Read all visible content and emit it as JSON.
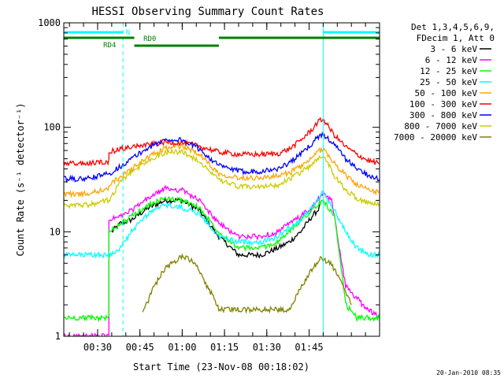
{
  "chart_data": {
    "type": "line",
    "title": "HESSI Observing Summary Count Rates",
    "xlabel": "Start Time (23-Nov-08 00:18:02)",
    "ylabel": "Count Rate (s⁻¹ detector⁻¹)",
    "x_unit": "minutes since 00:18:02",
    "x_range": [
      0,
      112
    ],
    "y_scale": "log",
    "y_range": [
      1,
      1000
    ],
    "x_ticks": [
      {
        "x": 12,
        "label": "00:30"
      },
      {
        "x": 27,
        "label": "00:45"
      },
      {
        "x": 42,
        "label": "01:00"
      },
      {
        "x": 57,
        "label": "01:15"
      },
      {
        "x": 72,
        "label": "01:30"
      },
      {
        "x": 87,
        "label": "01:45"
      }
    ],
    "y_ticks": [
      {
        "v": 1,
        "label": "1"
      },
      {
        "v": 10,
        "label": "10"
      },
      {
        "v": 100,
        "label": "100"
      },
      {
        "v": 1000,
        "label": "1000"
      }
    ],
    "legend_header": [
      "Det 1,3,4,5,6,9,",
      "FDecim 1, Att 0"
    ],
    "legend_position": "right",
    "footer_stamp": "20-Jan-2010 08:35",
    "flags": [
      {
        "label": "N",
        "color": "#00ffff",
        "segments": [
          [
            0,
            21
          ],
          [
            92,
            112
          ]
        ]
      },
      {
        "label": "RD0",
        "color": "#008000",
        "segments": [
          [
            0,
            25
          ],
          [
            55,
            112
          ]
        ]
      },
      {
        "label": "RD4",
        "color": "#008000",
        "segments": [
          [
            25,
            55
          ]
        ]
      }
    ],
    "vlines": [
      {
        "x": 21,
        "color": "#00ffff",
        "style": "dashed"
      },
      {
        "x": 92,
        "color": "#00ffff",
        "style": "solid"
      },
      {
        "x": 112,
        "color": "#00ffff",
        "style": "dashed"
      }
    ],
    "series": [
      {
        "name": "3 - 6 keV",
        "color": "#000000",
        "x": [
          17,
          20,
          24,
          30,
          36,
          42,
          48,
          55,
          62,
          70,
          76,
          80,
          84,
          88,
          90,
          91
        ],
        "values": [
          10,
          12,
          13,
          17,
          20,
          20,
          16,
          9,
          6,
          6,
          7,
          8,
          10,
          14,
          16,
          18
        ]
      },
      {
        "name": "6 - 12 keV",
        "color": "#ff00ff",
        "x": [
          0,
          16,
          16,
          20,
          24,
          30,
          36,
          42,
          48,
          55,
          62,
          70,
          76,
          80,
          84,
          88,
          90,
          92,
          95,
          100,
          106,
          112
        ],
        "values": [
          1,
          1,
          13,
          14,
          16,
          21,
          26,
          25,
          20,
          12,
          9,
          9,
          10,
          12,
          14,
          17,
          20,
          23,
          20,
          3,
          2,
          1.5
        ]
      },
      {
        "name": "12 - 25 keV",
        "color": "#00ff00",
        "x": [
          0,
          16,
          16,
          20,
          24,
          30,
          36,
          42,
          48,
          55,
          62,
          70,
          76,
          80,
          84,
          88,
          92,
          96,
          100,
          104,
          112
        ],
        "values": [
          1.5,
          1.5,
          10,
          12,
          14,
          18,
          21,
          20,
          17,
          10,
          7,
          7,
          8,
          10,
          13,
          16,
          20,
          14,
          2,
          1.5,
          1.5
        ]
      },
      {
        "name": "25 - 50 keV",
        "color": "#00ffff",
        "x": [
          0,
          8,
          16,
          20,
          24,
          30,
          36,
          42,
          48,
          55,
          62,
          70,
          76,
          80,
          84,
          88,
          92,
          96,
          100,
          104,
          108,
          112
        ],
        "values": [
          6,
          6,
          6,
          7,
          10,
          15,
          18,
          17,
          15,
          9,
          8,
          8,
          9,
          11,
          13,
          17,
          24,
          16,
          10,
          7,
          6,
          6
        ]
      },
      {
        "name": "50 - 100 keV",
        "color": "#ffa500",
        "x": [
          0,
          8,
          16,
          17,
          20,
          24,
          30,
          36,
          42,
          48,
          55,
          62,
          70,
          76,
          80,
          84,
          88,
          90,
          92,
          96,
          100,
          104,
          108,
          112
        ],
        "values": [
          23,
          23,
          26,
          30,
          33,
          40,
          52,
          63,
          66,
          56,
          36,
          33,
          33,
          34,
          37,
          42,
          50,
          58,
          63,
          45,
          35,
          28,
          25,
          24
        ]
      },
      {
        "name": "100 - 300 keV",
        "color": "#ff0000",
        "x": [
          0,
          8,
          16,
          16,
          20,
          24,
          30,
          36,
          42,
          48,
          55,
          62,
          70,
          76,
          80,
          84,
          88,
          90,
          92,
          96,
          100,
          104,
          108,
          112
        ],
        "values": [
          45,
          45,
          47,
          58,
          62,
          65,
          68,
          72,
          71,
          66,
          58,
          55,
          55,
          56,
          62,
          75,
          95,
          112,
          120,
          84,
          65,
          55,
          48,
          45
        ]
      },
      {
        "name": "300 - 800 keV",
        "color": "#0000ff",
        "x": [
          0,
          8,
          16,
          20,
          24,
          30,
          36,
          42,
          48,
          55,
          62,
          70,
          76,
          80,
          84,
          88,
          90,
          92,
          96,
          100,
          104,
          108,
          112
        ],
        "values": [
          32,
          32,
          36,
          42,
          50,
          64,
          76,
          76,
          62,
          43,
          38,
          38,
          40,
          46,
          55,
          70,
          80,
          86,
          68,
          50,
          40,
          35,
          32
        ]
      },
      {
        "name": "800 - 7000 keV",
        "color": "#cccc00",
        "x": [
          0,
          8,
          16,
          20,
          24,
          30,
          36,
          42,
          48,
          55,
          62,
          70,
          76,
          80,
          84,
          88,
          92,
          96,
          100,
          104,
          108,
          112
        ],
        "values": [
          18,
          18,
          20,
          30,
          37,
          48,
          58,
          58,
          48,
          31,
          27,
          27,
          28,
          32,
          37,
          44,
          55,
          34,
          25,
          21,
          19,
          18
        ]
      },
      {
        "name": "7000 - 20000 keV",
        "color": "#808000",
        "x": [
          28,
          30,
          32,
          36,
          42,
          46,
          48,
          50,
          53,
          55,
          80,
          82,
          85,
          88,
          91,
          94,
          97,
          99,
          102
        ],
        "values": [
          1.8,
          2.2,
          3.0,
          4.5,
          5.8,
          5.2,
          4.2,
          3.2,
          2.4,
          1.8,
          1.8,
          2.3,
          3.2,
          4.4,
          5.5,
          5.2,
          4.0,
          3.0,
          2.0
        ]
      }
    ]
  }
}
